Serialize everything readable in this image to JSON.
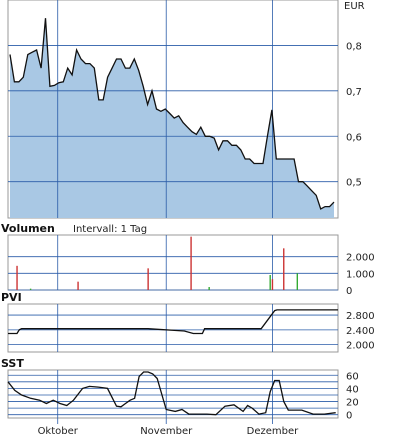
{
  "currency": "EUR",
  "months": [
    {
      "label": "Oktober",
      "day": 22
    },
    {
      "label": "November",
      "day": 70
    },
    {
      "label": "Dezember",
      "day": 117
    }
  ],
  "price": {
    "ylim": [
      0.42,
      0.9
    ],
    "ticks": [
      {
        "v": 0.5,
        "label": "0,5"
      },
      {
        "v": 0.6,
        "label": "0,6"
      },
      {
        "v": 0.7,
        "label": "0,7"
      },
      {
        "v": 0.8,
        "label": "0,8"
      }
    ],
    "values": [
      0.78,
      0.72,
      0.72,
      0.73,
      0.78,
      0.785,
      0.79,
      0.75,
      0.86,
      0.71,
      0.712,
      0.718,
      0.72,
      0.75,
      0.735,
      0.79,
      0.77,
      0.76,
      0.76,
      0.75,
      0.68,
      0.68,
      0.73,
      0.75,
      0.77,
      0.77,
      0.75,
      0.75,
      0.77,
      0.745,
      0.71,
      0.67,
      0.7,
      0.66,
      0.655,
      0.66,
      0.65,
      0.64,
      0.645,
      0.63,
      0.62,
      0.61,
      0.604,
      0.62,
      0.6,
      0.6,
      0.596,
      0.57,
      0.59,
      0.59,
      0.58,
      0.58,
      0.57,
      0.55,
      0.55,
      0.54,
      0.54,
      0.54,
      0.6,
      0.658,
      0.55,
      0.55,
      0.55,
      0.55,
      0.55,
      0.5,
      0.5,
      0.49,
      0.48,
      0.47,
      0.44,
      0.445,
      0.445,
      0.455
    ]
  },
  "chart_data": [
    {
      "type": "area",
      "name": "price",
      "ylabel": "EUR",
      "ylim": [
        0.42,
        0.9
      ],
      "x_ticks": [
        "Oktober",
        "November",
        "Dezember"
      ],
      "y_ticks": [
        "0,5",
        "0,6",
        "0,7",
        "0,8"
      ]
    },
    {
      "type": "bar",
      "name": "volume",
      "title": "Volumen",
      "ylim": [
        0,
        3300
      ],
      "y_ticks": [
        "0",
        "1.000",
        "2.000"
      ],
      "bars": [
        {
          "x": 4,
          "v": 1450,
          "color": "#cc3333"
        },
        {
          "x": 10,
          "v": 80,
          "color": "#33aa33"
        },
        {
          "x": 31,
          "v": 500,
          "color": "#cc3333"
        },
        {
          "x": 62,
          "v": 1300,
          "color": "#cc3333"
        },
        {
          "x": 81,
          "v": 3200,
          "color": "#cc3333"
        },
        {
          "x": 89,
          "v": 180,
          "color": "#33aa33"
        },
        {
          "x": 116,
          "v": 900,
          "color": "#33aa33"
        },
        {
          "x": 117,
          "v": 650,
          "color": "#cc3333"
        },
        {
          "x": 122,
          "v": 2500,
          "color": "#cc3333"
        },
        {
          "x": 128,
          "v": 1000,
          "color": "#33aa33"
        }
      ]
    },
    {
      "type": "line",
      "name": "pvi",
      "title": "PVI",
      "ylim": [
        1800,
        3100
      ],
      "y_ticks": [
        "2.000",
        "2.400",
        "2.800"
      ],
      "x": [
        0,
        4,
        5,
        6,
        62,
        78,
        82,
        86,
        87,
        112,
        118,
        119,
        146
      ],
      "y": [
        2300,
        2300,
        2400,
        2430,
        2430,
        2370,
        2300,
        2300,
        2430,
        2430,
        2920,
        2940,
        2940
      ]
    },
    {
      "type": "line",
      "name": "sst",
      "title": "SST",
      "ylim": [
        -5,
        68
      ],
      "y_ticks": [
        "0",
        "20",
        "40",
        "60"
      ],
      "x": [
        0,
        3,
        6,
        10,
        14,
        17,
        20,
        23,
        26,
        29,
        33,
        36,
        40,
        44,
        48,
        50,
        52,
        54,
        56,
        58,
        60,
        62,
        64,
        66,
        70,
        74,
        77,
        80,
        84,
        88,
        92,
        96,
        100,
        104,
        106,
        108,
        111,
        114,
        116,
        118,
        120,
        122,
        124,
        130,
        135,
        140,
        145
      ],
      "y": [
        50,
        37,
        30,
        25,
        22,
        17,
        22,
        17,
        14,
        22,
        40,
        43,
        42,
        40,
        13,
        12,
        17,
        22,
        25,
        58,
        65,
        65,
        62,
        55,
        8,
        5,
        8,
        1,
        1,
        1,
        0,
        13,
        15,
        5,
        14,
        10,
        1,
        3,
        35,
        52,
        52,
        20,
        7,
        7,
        1,
        1,
        3
      ]
    }
  ]
}
